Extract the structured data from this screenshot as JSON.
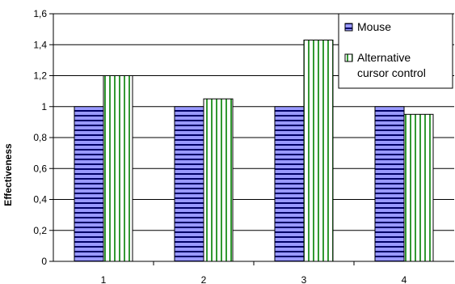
{
  "chart_data": {
    "type": "bar",
    "title": "",
    "xlabel": "",
    "ylabel": "Effectiveness",
    "categories": [
      "1",
      "2",
      "3",
      "4"
    ],
    "series": [
      {
        "name": "Mouse",
        "values": [
          1.0,
          1.0,
          1.0,
          1.0
        ],
        "color": "#9999ff",
        "pattern": "horizontal-stripes"
      },
      {
        "name": "Alternative cursor control",
        "values": [
          1.2,
          1.05,
          1.43,
          0.95
        ],
        "color": "#339933",
        "pattern": "vertical-stripes"
      }
    ],
    "ylim": [
      0,
      1.6
    ],
    "yticks": [
      "0",
      "0,2",
      "0,4",
      "0,6",
      "0,8",
      "1",
      "1,2",
      "1,4",
      "1,6"
    ],
    "grid": true,
    "legend": {
      "placement": "top-right",
      "labels": [
        "Mouse",
        [
          "Alternative",
          "cursor control"
        ]
      ]
    }
  }
}
